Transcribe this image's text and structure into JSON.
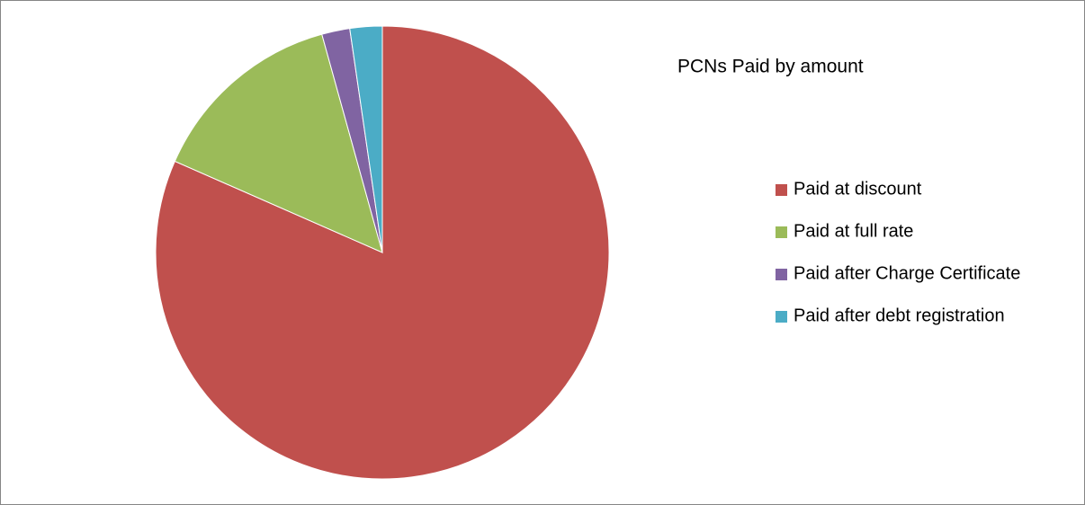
{
  "chart_data": {
    "type": "pie",
    "title": "PCNs Paid by amount",
    "categories": [
      "Paid at discount",
      "Paid at full rate",
      "Paid after Charge Certificate",
      "Paid after debt registration"
    ],
    "values": [
      81.6,
      14.1,
      2.0,
      2.3
    ],
    "colors": [
      "#c0504d",
      "#9bbb59",
      "#8064a2",
      "#4bacc6"
    ],
    "legend": "right"
  }
}
